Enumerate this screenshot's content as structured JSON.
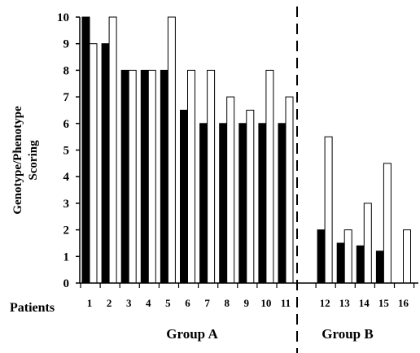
{
  "chart_data": {
    "type": "bar",
    "ylabel_line1": "Genotype/Phenotype",
    "ylabel_line2": "Scoring",
    "x_prefix_label": "Patients",
    "ylim": [
      0,
      10
    ],
    "yticks": [
      0,
      1,
      2,
      3,
      4,
      5,
      6,
      7,
      8,
      9,
      10
    ],
    "categories": [
      "1",
      "2",
      "3",
      "4",
      "5",
      "6",
      "7",
      "8",
      "9",
      "10",
      "11",
      "12",
      "13",
      "14",
      "15",
      "16"
    ],
    "series": [
      {
        "fill": "#000000",
        "values": [
          10,
          9,
          8,
          8,
          8,
          6.5,
          6,
          6,
          6,
          6,
          6,
          2,
          1.5,
          1.4,
          1.2,
          null
        ]
      },
      {
        "fill": "#ffffff",
        "values": [
          9,
          10,
          8,
          8,
          10,
          8,
          8,
          7,
          6.5,
          8,
          7,
          5.5,
          2,
          3,
          4.5,
          2
        ]
      }
    ],
    "groups": [
      {
        "label": "Group A",
        "from": 1,
        "to": 11
      },
      {
        "label": "Group B",
        "from": 12,
        "to": 16
      }
    ],
    "grid": false,
    "legend": "none"
  }
}
